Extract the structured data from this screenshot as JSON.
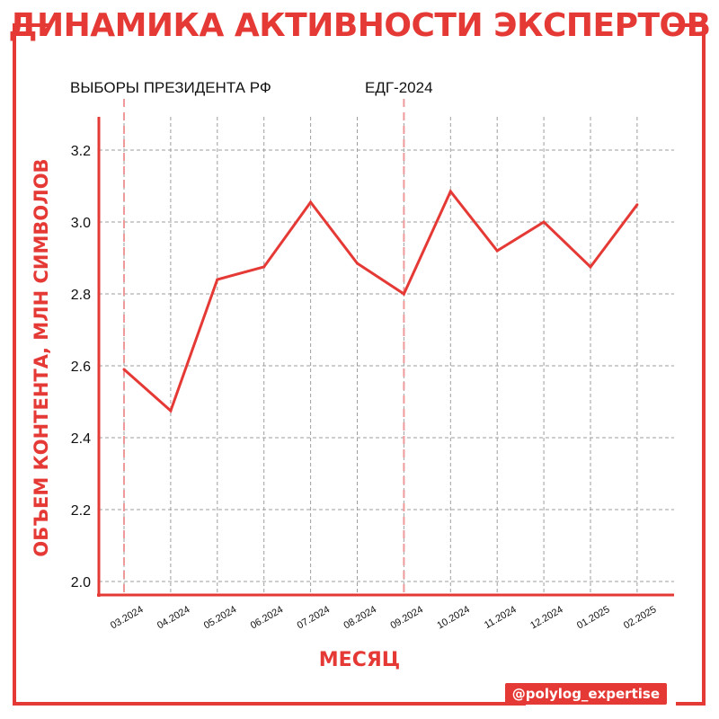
{
  "title": "ДИНАМИКА АКТИВНОСТИ ЭКСПЕРТОВ",
  "handle": "@polylog_expertise",
  "colors": {
    "accent": "#e53935",
    "grid": "#9e9e9e",
    "text": "#111111"
  },
  "chart_data": {
    "type": "line",
    "xlabel": "МЕСЯЦ",
    "ylabel": "ОБЪЕМ КОНТЕНТА, МЛН СИМВОЛОВ",
    "categories": [
      "03.2024",
      "04.2024",
      "05.2024",
      "06.2024",
      "07.2024",
      "08.2024",
      "09.2024",
      "10.2024",
      "11.2024",
      "12.2024",
      "01.2025",
      "02.2025"
    ],
    "series": [
      {
        "values": [
          2.59,
          2.475,
          2.84,
          2.875,
          3.055,
          2.885,
          2.8,
          3.085,
          2.92,
          3.0,
          2.875,
          3.048
        ]
      }
    ],
    "ylim": [
      1.98,
      3.22
    ],
    "yticks": [
      "2.0",
      "2.2",
      "2.4",
      "2.6",
      "2.8",
      "3.0",
      "3.2"
    ],
    "grid": true,
    "events": [
      {
        "label": "ВЫБОРЫ ПРЕЗИДЕНТА РФ",
        "at": "03.2024"
      },
      {
        "label": "ЕДГ-2024",
        "at": "09.2024"
      }
    ]
  }
}
